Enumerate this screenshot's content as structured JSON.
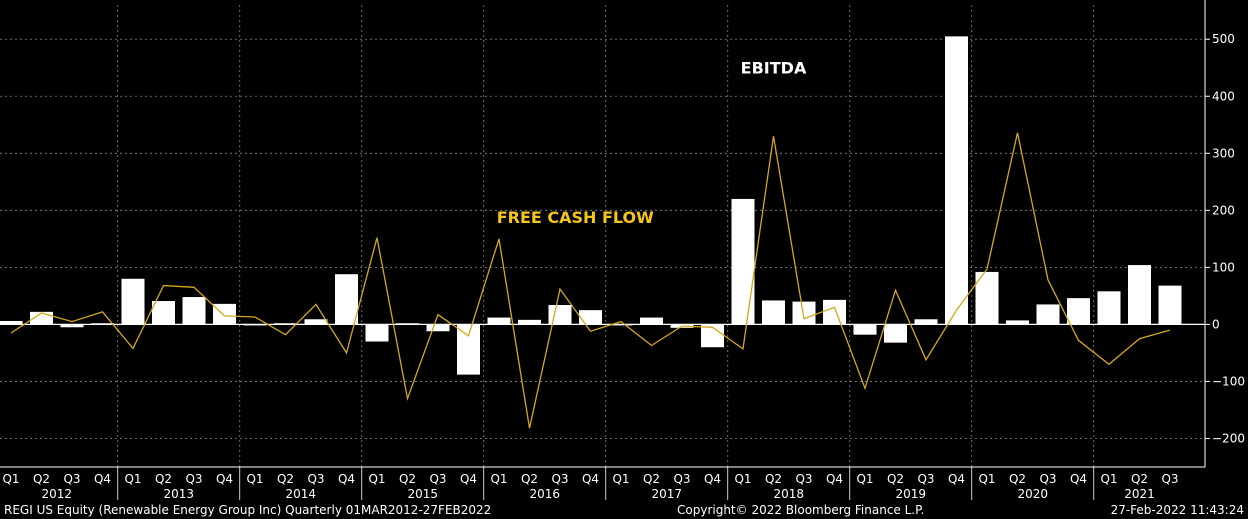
{
  "chart_data": {
    "type": "bar",
    "x_quarters": [
      "Q1",
      "Q2",
      "Q3",
      "Q4",
      "Q1",
      "Q2",
      "Q3",
      "Q4",
      "Q1",
      "Q2",
      "Q3",
      "Q4",
      "Q1",
      "Q2",
      "Q3",
      "Q4",
      "Q1",
      "Q2",
      "Q3",
      "Q4",
      "Q1",
      "Q2",
      "Q3",
      "Q4",
      "Q1",
      "Q2",
      "Q3",
      "Q4",
      "Q1",
      "Q2",
      "Q3",
      "Q4",
      "Q1",
      "Q2",
      "Q3",
      "Q4",
      "Q1",
      "Q2",
      "Q3"
    ],
    "years": [
      {
        "label": "2012",
        "start": 0,
        "count": 4
      },
      {
        "label": "2013",
        "start": 4,
        "count": 4
      },
      {
        "label": "2014",
        "start": 8,
        "count": 4
      },
      {
        "label": "2015",
        "start": 12,
        "count": 4
      },
      {
        "label": "2016",
        "start": 16,
        "count": 4
      },
      {
        "label": "2017",
        "start": 20,
        "count": 4
      },
      {
        "label": "2018",
        "start": 24,
        "count": 4
      },
      {
        "label": "2019",
        "start": 28,
        "count": 4
      },
      {
        "label": "2020",
        "start": 32,
        "count": 4
      },
      {
        "label": "2021",
        "start": 36,
        "count": 3
      }
    ],
    "series": [
      {
        "name": "EBITDA",
        "kind": "bar",
        "color": "#ffffff",
        "values": [
          6,
          22,
          -5,
          2,
          80,
          41,
          48,
          36,
          -1,
          2,
          9,
          88,
          -30,
          2,
          -12,
          -88,
          12,
          8,
          34,
          25,
          0,
          12,
          -6,
          -40,
          220,
          42,
          40,
          43,
          -18,
          -32,
          9,
          505,
          92,
          7,
          35,
          46,
          58,
          104,
          68
        ]
      },
      {
        "name": "FREE CASH FLOW",
        "kind": "line",
        "color": "#d4a81c",
        "values": [
          -15,
          20,
          5,
          22,
          -42,
          68,
          65,
          15,
          13,
          -18,
          35,
          -50,
          152,
          -130,
          17,
          -20,
          150,
          -182,
          62,
          -12,
          5,
          -37,
          -3,
          -5,
          -43,
          330,
          10,
          30,
          -112,
          60,
          -62,
          25,
          97,
          336,
          78,
          -28,
          -70,
          -25,
          -10
        ]
      }
    ],
    "ylim": [
      -250,
      560
    ],
    "yticks": [
      -200,
      -100,
      0,
      100,
      200,
      300,
      400,
      500
    ],
    "annotations": [
      {
        "text": "EBITDA",
        "x_index": 25.0,
        "y": 440,
        "color": "#ffffff"
      },
      {
        "text": "FREE CASH FLOW",
        "x_index": 18.5,
        "y": 178,
        "color": "#f5c518"
      }
    ],
    "grid": true,
    "axis_position": "right"
  },
  "footer": {
    "left": "REGI US Equity (Renewable Energy Group Inc)  Quarterly 01MAR2012-27FEB2022",
    "center": "Copyright© 2022 Bloomberg Finance L.P.",
    "right": "27-Feb-2022 11:43:24"
  }
}
